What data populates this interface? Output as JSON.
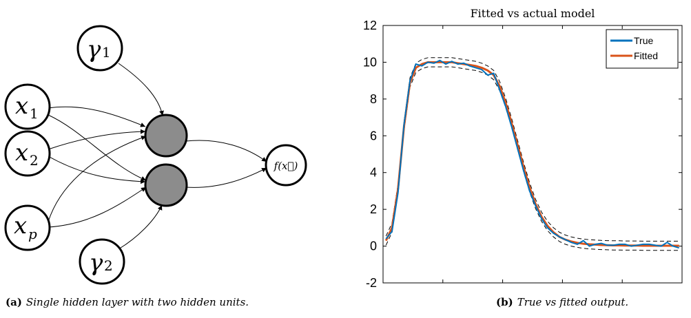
{
  "diagram": {
    "nodes": {
      "gamma1": {
        "base": "γ",
        "sub": "1"
      },
      "x1": {
        "base": "x",
        "sub": "1"
      },
      "x2": {
        "base": "x",
        "sub": "2"
      },
      "xp": {
        "base": "x",
        "sub": "p"
      },
      "gamma2": {
        "base": "γ",
        "sub": "2"
      },
      "output": "f(x⃗)"
    },
    "colors": {
      "hidden_fill": "#8c8c8c",
      "stroke": "#000000"
    }
  },
  "captions": {
    "a": {
      "label": "(a)",
      "text": "Single hidden layer with two hidden units."
    },
    "b": {
      "label": "(b)",
      "text": "True vs fitted output."
    }
  },
  "chart_data": {
    "type": "line",
    "title": "Fitted vs actual model",
    "xlabel": "",
    "ylabel": "",
    "xlim": [
      0,
      10
    ],
    "ylim": [
      -2,
      12
    ],
    "xticks": [
      0,
      2,
      4,
      6,
      8,
      10
    ],
    "yticks": [
      -2,
      0,
      2,
      4,
      6,
      8,
      10,
      12
    ],
    "legend_position": "top-right",
    "series": [
      {
        "name": "True",
        "color": "#0072BD",
        "x": [
          0.1,
          0.3,
          0.5,
          0.7,
          0.9,
          1.1,
          1.3,
          1.5,
          1.7,
          1.9,
          2.1,
          2.3,
          2.5,
          2.7,
          2.9,
          3.1,
          3.3,
          3.5,
          3.7,
          3.9,
          4.1,
          4.3,
          4.5,
          4.7,
          4.9,
          5.1,
          5.3,
          5.5,
          5.7,
          5.9,
          6.1,
          6.3,
          6.5,
          6.7,
          6.9,
          7.1,
          7.3,
          7.5,
          7.7,
          7.9,
          8.1,
          8.3,
          8.5,
          8.7,
          8.9,
          9.1,
          9.3,
          9.5,
          9.7,
          9.9
        ],
        "y": [
          0.4,
          0.8,
          2.9,
          6.6,
          9.0,
          9.9,
          9.8,
          10.0,
          9.95,
          10.1,
          9.9,
          10.05,
          9.9,
          9.95,
          9.8,
          9.7,
          9.6,
          9.3,
          9.4,
          8.5,
          7.6,
          6.5,
          5.3,
          4.1,
          3.0,
          2.2,
          1.5,
          1.0,
          0.7,
          0.5,
          0.35,
          0.2,
          0.1,
          0.3,
          0.0,
          0.1,
          0.15,
          0.05,
          0.05,
          0.1,
          0.1,
          0.0,
          0.05,
          0.1,
          0.1,
          0.05,
          0.0,
          0.2,
          0.0,
          -0.1
        ]
      },
      {
        "name": "Fitted",
        "color": "#D95319",
        "x": [
          0.1,
          0.3,
          0.5,
          0.7,
          0.9,
          1.1,
          1.3,
          1.5,
          1.7,
          1.9,
          2.1,
          2.3,
          2.5,
          2.7,
          2.9,
          3.1,
          3.3,
          3.5,
          3.7,
          3.9,
          4.1,
          4.3,
          4.5,
          4.7,
          4.9,
          5.1,
          5.3,
          5.5,
          5.7,
          5.9,
          6.1,
          6.3,
          6.5,
          6.7,
          6.9,
          7.1,
          7.3,
          7.5,
          7.7,
          7.9,
          8.1,
          8.3,
          8.5,
          8.7,
          8.9,
          9.1,
          9.3,
          9.5,
          9.7,
          9.9
        ],
        "y": [
          0.3,
          1.0,
          3.1,
          6.5,
          8.9,
          9.7,
          9.9,
          10.0,
          10.0,
          10.0,
          10.0,
          10.0,
          9.95,
          9.9,
          9.85,
          9.8,
          9.7,
          9.55,
          9.3,
          8.7,
          7.8,
          6.7,
          5.5,
          4.3,
          3.2,
          2.3,
          1.6,
          1.1,
          0.75,
          0.5,
          0.35,
          0.25,
          0.18,
          0.13,
          0.1,
          0.08,
          0.06,
          0.05,
          0.04,
          0.04,
          0.03,
          0.03,
          0.03,
          0.02,
          0.02,
          0.02,
          0.02,
          0.02,
          0.02,
          0.02
        ]
      },
      {
        "name": "",
        "color": "#000000",
        "dashed": true,
        "x": [
          0.1,
          0.3,
          0.5,
          0.7,
          0.9,
          1.1,
          1.3,
          1.5,
          1.7,
          1.9,
          2.1,
          2.3,
          2.5,
          2.7,
          2.9,
          3.1,
          3.3,
          3.5,
          3.7,
          3.9,
          4.1,
          4.3,
          4.5,
          4.7,
          4.9,
          5.1,
          5.3,
          5.5,
          5.7,
          5.9,
          6.1,
          6.3,
          6.5,
          6.7,
          6.9,
          7.1,
          7.3,
          7.5,
          7.7,
          7.9,
          8.1,
          8.3,
          8.5,
          8.7,
          8.9,
          9.1,
          9.3,
          9.5,
          9.7,
          9.9
        ],
        "y": [
          0.55,
          1.25,
          3.35,
          6.75,
          9.15,
          9.95,
          10.15,
          10.25,
          10.25,
          10.25,
          10.25,
          10.25,
          10.2,
          10.15,
          10.1,
          10.05,
          9.95,
          9.8,
          9.55,
          8.95,
          8.05,
          6.95,
          5.75,
          4.55,
          3.45,
          2.55,
          1.85,
          1.35,
          1.0,
          0.75,
          0.6,
          0.5,
          0.43,
          0.38,
          0.35,
          0.33,
          0.31,
          0.3,
          0.29,
          0.29,
          0.28,
          0.28,
          0.28,
          0.27,
          0.27,
          0.27,
          0.27,
          0.27,
          0.27,
          0.27
        ]
      },
      {
        "name": "",
        "color": "#000000",
        "dashed": true,
        "x": [
          0.1,
          0.3,
          0.5,
          0.7,
          0.9,
          1.1,
          1.3,
          1.5,
          1.7,
          1.9,
          2.1,
          2.3,
          2.5,
          2.7,
          2.9,
          3.1,
          3.3,
          3.5,
          3.7,
          3.9,
          4.1,
          4.3,
          4.5,
          4.7,
          4.9,
          5.1,
          5.3,
          5.5,
          5.7,
          5.9,
          6.1,
          6.3,
          6.5,
          6.7,
          6.9,
          7.1,
          7.3,
          7.5,
          7.7,
          7.9,
          8.1,
          8.3,
          8.5,
          8.7,
          8.9,
          9.1,
          9.3,
          9.5,
          9.7,
          9.9
        ],
        "y": [
          0.05,
          0.75,
          2.85,
          6.25,
          8.65,
          9.45,
          9.65,
          9.75,
          9.75,
          9.75,
          9.75,
          9.75,
          9.7,
          9.65,
          9.6,
          9.55,
          9.45,
          9.3,
          9.05,
          8.45,
          7.55,
          6.45,
          5.25,
          4.05,
          2.95,
          2.05,
          1.35,
          0.85,
          0.5,
          0.25,
          0.1,
          0.0,
          -0.07,
          -0.12,
          -0.15,
          -0.17,
          -0.19,
          -0.2,
          -0.21,
          -0.21,
          -0.22,
          -0.22,
          -0.22,
          -0.23,
          -0.23,
          -0.23,
          -0.23,
          -0.23,
          -0.23,
          -0.23
        ]
      }
    ]
  }
}
